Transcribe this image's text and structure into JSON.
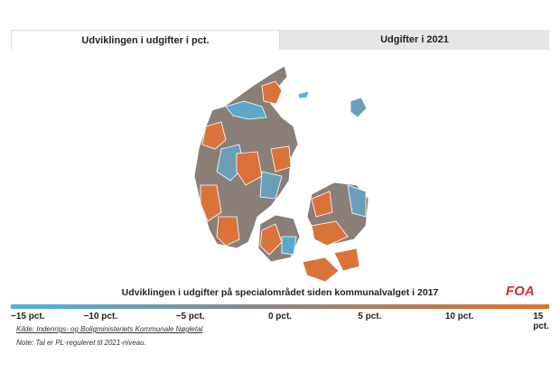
{
  "tabs": [
    "Udviklingen i udgifter i pct.",
    "Udgifter i 2021"
  ],
  "map": {
    "caption": "Udviklingen i udgifter på specialområdet siden kommunalvalget i 2017",
    "logo": "FOA",
    "legend_labels": [
      "−15 pct.",
      "−10 pct.",
      "−5 pct.",
      "0 pct.",
      "5 pct.",
      "10 pct.",
      "15 pct."
    ]
  },
  "source": "Kilde: Indenrigs- og Boligministeriets Kommunale Nøgletal",
  "note": "Note: Tal er PL-reguleret til 2021-niveau."
}
